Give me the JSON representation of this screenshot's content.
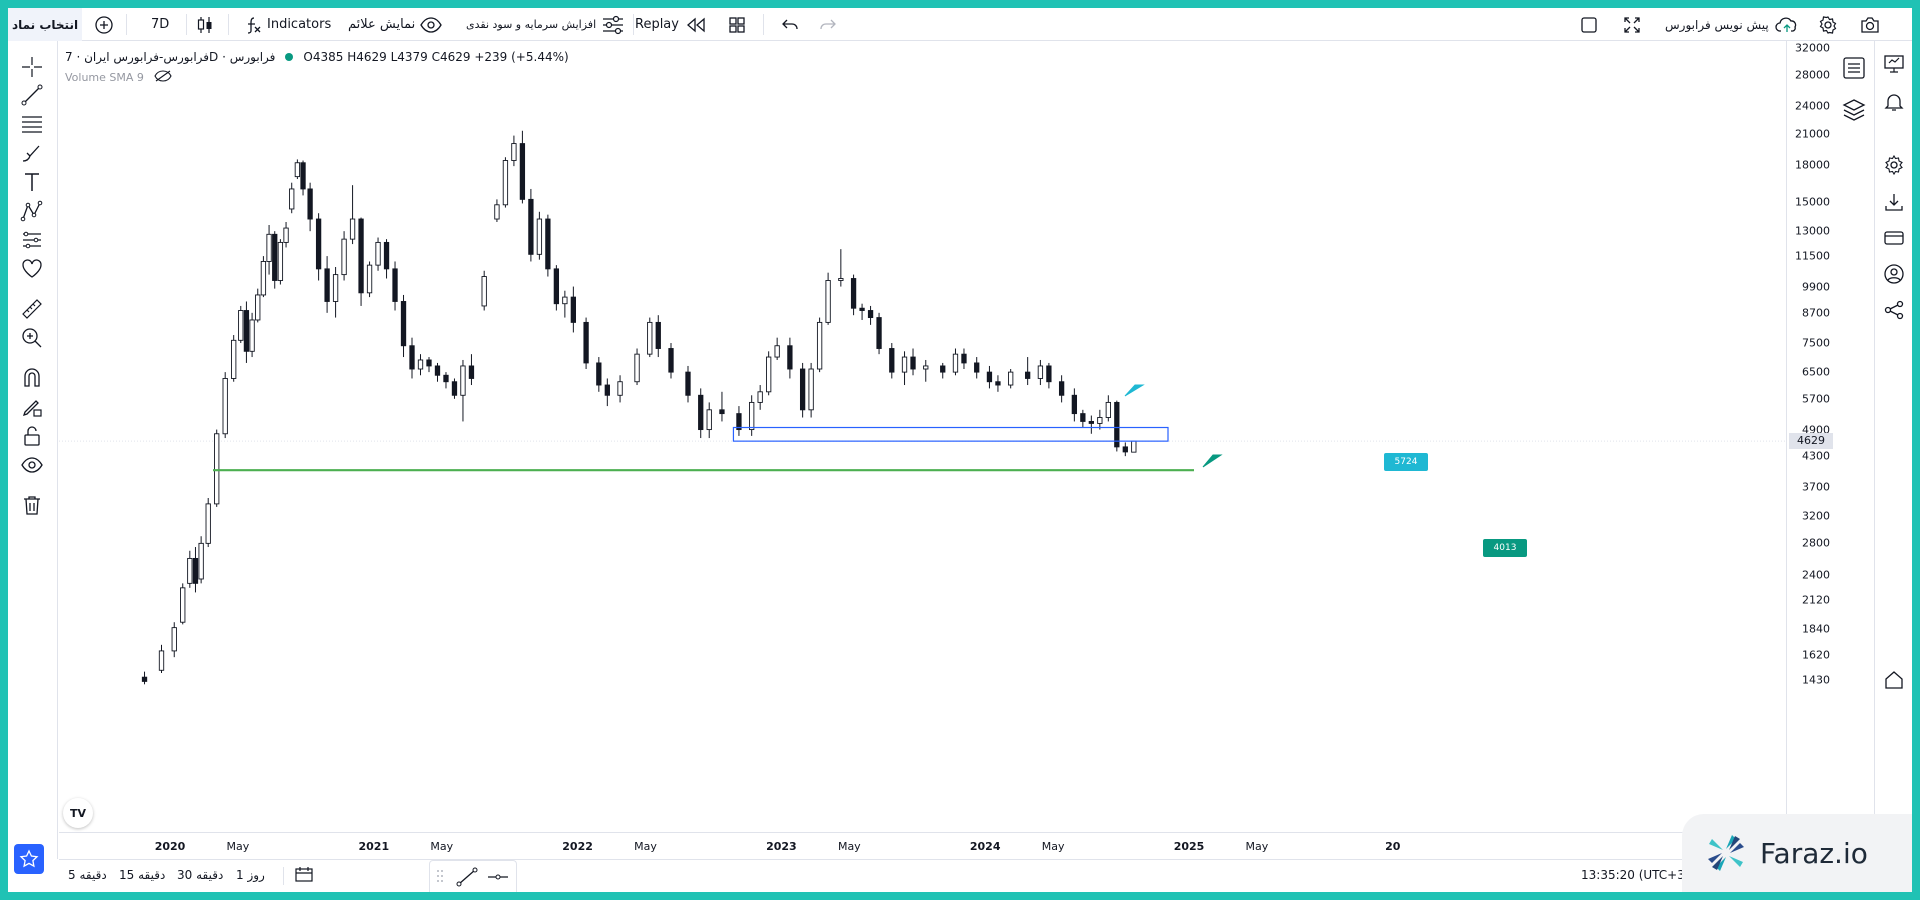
{
  "toolbar": {
    "symbol_label": "انتخاب نماد",
    "add_label": "+",
    "interval": "7D",
    "indicators_label": "Indicators",
    "show_signals_label": "نمایش علائم",
    "capital_increase_label": "افزایش سرمایه و سود نقدی",
    "replay_label": "Replay",
    "predict_label": "پیش نویس فرابورس"
  },
  "legend": {
    "symbol": "فرابورس-فرابورس ایران · 7D · فرابورس",
    "ohlc": "O4385 H4629 L4379 C4629 +239 (+5.44%)",
    "volume": "Volume SMA 9"
  },
  "price_axis": {
    "labels": [
      "32000",
      "28000",
      "24000",
      "21000",
      "18000",
      "15000",
      "13000",
      "11500",
      "9900",
      "8700",
      "7500",
      "6500",
      "5700",
      "4900",
      "4300",
      "3700",
      "3200",
      "2800",
      "2400",
      "2120",
      "1840",
      "1620",
      "1430"
    ],
    "current": "4629"
  },
  "time_axis": {
    "labels": [
      {
        "text": "2020",
        "year": true
      },
      {
        "text": "May",
        "year": false
      },
      {
        "text": "2021",
        "year": true
      },
      {
        "text": "May",
        "year": false
      },
      {
        "text": "2022",
        "year": true
      },
      {
        "text": "May",
        "year": false
      },
      {
        "text": "2023",
        "year": true
      },
      {
        "text": "May",
        "year": false
      },
      {
        "text": "2024",
        "year": true
      },
      {
        "text": "May",
        "year": false
      },
      {
        "text": "2025",
        "year": true
      },
      {
        "text": "May",
        "year": false
      },
      {
        "text": "20",
        "year": true
      }
    ]
  },
  "annotations": {
    "upper_label": "5724",
    "lower_label": "4013",
    "upper_color": "#1fb8d3",
    "lower_color": "#089981",
    "box_color": "#2962ff",
    "support_line_color": "#4caf50"
  },
  "bottombar": {
    "tf_5m": "5 دقیقه",
    "tf_15m": "15 دقیقه",
    "tf_30m": "30 دقیقه",
    "tf_1d": "1 روز",
    "clock": "13:35:20 (UTC+3:3"
  },
  "watermark": {
    "text": "Faraz.io"
  },
  "logo": {
    "text": "TV"
  },
  "chart_data": {
    "type": "candlestick",
    "scale": "log",
    "ylim": [
      1430,
      32000
    ],
    "candles": [
      [
        "2019-11",
        1450,
        1490,
        1400,
        1420
      ],
      [
        "2019-12",
        1500,
        1700,
        1480,
        1650
      ],
      [
        "2020-01",
        1650,
        1900,
        1600,
        1850
      ],
      [
        "2020-01",
        1900,
        2300,
        1880,
        2250
      ],
      [
        "2020-02",
        2300,
        2700,
        2250,
        2600
      ],
      [
        "2020-02",
        2600,
        2750,
        2200,
        2300
      ],
      [
        "2020-02",
        2350,
        2900,
        2300,
        2800
      ],
      [
        "2020-03",
        2800,
        3500,
        2750,
        3400
      ],
      [
        "2020-03",
        3400,
        4900,
        3350,
        4800
      ],
      [
        "2020-04",
        4800,
        6500,
        4700,
        6300
      ],
      [
        "2020-04",
        6300,
        7800,
        6200,
        7600
      ],
      [
        "2020-05",
        7600,
        9000,
        7500,
        8800
      ],
      [
        "2020-05",
        8800,
        9200,
        6800,
        7200
      ],
      [
        "2020-05",
        7200,
        8700,
        7000,
        8400
      ],
      [
        "2020-06",
        8400,
        9800,
        8300,
        9500
      ],
      [
        "2020-06",
        9500,
        11500,
        9400,
        11200
      ],
      [
        "2020-06",
        11200,
        13400,
        10500,
        12800
      ],
      [
        "2020-07",
        12800,
        13000,
        9800,
        10200
      ],
      [
        "2020-07",
        10200,
        12500,
        10000,
        12300
      ],
      [
        "2020-07",
        12300,
        13600,
        12000,
        13200
      ],
      [
        "2020-08",
        14500,
        16500,
        14200,
        16000
      ],
      [
        "2020-08",
        17000,
        18500,
        16800,
        18200
      ],
      [
        "2020-08",
        18200,
        18400,
        15500,
        16000
      ],
      [
        "2020-09",
        16000,
        16500,
        13000,
        13800
      ],
      [
        "2020-09",
        13800,
        14200,
        10200,
        10800
      ],
      [
        "2020-10",
        10800,
        11500,
        8700,
        9200
      ],
      [
        "2020-10",
        9200,
        10900,
        8500,
        10500
      ],
      [
        "2020-11",
        10500,
        13000,
        10200,
        12500
      ],
      [
        "2020-11",
        12500,
        16300,
        12200,
        13800
      ],
      [
        "2020-12",
        13800,
        13900,
        9000,
        9600
      ],
      [
        "2020-12",
        9600,
        11200,
        9400,
        11000
      ],
      [
        "2021-01",
        11000,
        12600,
        10700,
        12300
      ],
      [
        "2021-01",
        12300,
        12500,
        10300,
        10800
      ],
      [
        "2021-02",
        10800,
        11200,
        8800,
        9200
      ],
      [
        "2021-02",
        9200,
        9500,
        7000,
        7400
      ],
      [
        "2021-03",
        7400,
        7700,
        6300,
        6600
      ],
      [
        "2021-03",
        6600,
        7100,
        6400,
        6900
      ],
      [
        "2021-04",
        6900,
        7000,
        6500,
        6700
      ],
      [
        "2021-04",
        6700,
        6800,
        6200,
        6400
      ],
      [
        "2021-05",
        6400,
        6500,
        6000,
        6200
      ],
      [
        "2021-05",
        6200,
        6300,
        5700,
        5800
      ],
      [
        "2021-06",
        5800,
        6900,
        5100,
        6700
      ],
      [
        "2021-06",
        6700,
        7100,
        6100,
        6300
      ],
      [
        "2021-07",
        9000,
        10700,
        8800,
        10400
      ],
      [
        "2021-08",
        13800,
        15200,
        13600,
        14800
      ],
      [
        "2021-08",
        14800,
        18700,
        14600,
        18400
      ],
      [
        "2021-09",
        18400,
        20800,
        17900,
        20000
      ],
      [
        "2021-09",
        20000,
        21300,
        14900,
        15200
      ],
      [
        "2021-10",
        15200,
        16000,
        11200,
        11600
      ],
      [
        "2021-10",
        11600,
        14300,
        11300,
        13800
      ],
      [
        "2021-11",
        13800,
        14100,
        10400,
        10800
      ],
      [
        "2021-11",
        10800,
        11000,
        8800,
        9100
      ],
      [
        "2021-12",
        9100,
        9700,
        8500,
        9400
      ],
      [
        "2021-12",
        9400,
        9900,
        7900,
        8300
      ],
      [
        "2022-01",
        8300,
        8500,
        6600,
        6800
      ],
      [
        "2022-02",
        6800,
        7000,
        5900,
        6100
      ],
      [
        "2022-02",
        6100,
        6300,
        5500,
        5800
      ],
      [
        "2022-03",
        5800,
        6400,
        5600,
        6200
      ],
      [
        "2022-04",
        6200,
        7300,
        6100,
        7100
      ],
      [
        "2022-05",
        7100,
        8500,
        7000,
        8300
      ],
      [
        "2022-05",
        8300,
        8600,
        7000,
        7300
      ],
      [
        "2022-06",
        7300,
        7500,
        6300,
        6500
      ],
      [
        "2022-07",
        6500,
        6700,
        5600,
        5800
      ],
      [
        "2022-08",
        5800,
        6000,
        4700,
        4900
      ],
      [
        "2022-08",
        4900,
        5600,
        4700,
        5400
      ],
      [
        "2022-09",
        5400,
        5900,
        5100,
        5300
      ],
      [
        "2022-10",
        5300,
        5500,
        4750,
        4900
      ],
      [
        "2022-11",
        4900,
        5800,
        4750,
        5600
      ],
      [
        "2022-11",
        5600,
        6100,
        5400,
        5900
      ],
      [
        "2022-12",
        5900,
        7200,
        5800,
        7000
      ],
      [
        "2022-12",
        7000,
        7700,
        6900,
        7400
      ],
      [
        "2023-01",
        7400,
        7700,
        6300,
        6600
      ],
      [
        "2023-02",
        6600,
        6800,
        5200,
        5400
      ],
      [
        "2023-02",
        5400,
        6800,
        5200,
        6600
      ],
      [
        "2023-03",
        6600,
        8500,
        6500,
        8300
      ],
      [
        "2023-03",
        8300,
        10600,
        8200,
        10200
      ],
      [
        "2023-04",
        10200,
        11900,
        9900,
        10300
      ],
      [
        "2023-05",
        10300,
        10500,
        8600,
        8900
      ],
      [
        "2023-05",
        8900,
        9100,
        8400,
        8800
      ],
      [
        "2023-06",
        8800,
        9000,
        8200,
        8500
      ],
      [
        "2023-06",
        8500,
        8700,
        7100,
        7300
      ],
      [
        "2023-07",
        7300,
        7500,
        6300,
        6500
      ],
      [
        "2023-08",
        6500,
        7200,
        6100,
        7000
      ],
      [
        "2023-08",
        7000,
        7300,
        6400,
        6600
      ],
      [
        "2023-09",
        6600,
        6900,
        6200,
        6700
      ],
      [
        "2023-10",
        6700,
        6800,
        6300,
        6500
      ],
      [
        "2023-11",
        6500,
        7300,
        6400,
        7100
      ],
      [
        "2023-11",
        7100,
        7300,
        6600,
        6800
      ],
      [
        "2023-12",
        6800,
        7000,
        6300,
        6500
      ],
      [
        "2024-01",
        6500,
        6700,
        6000,
        6200
      ],
      [
        "2024-01",
        6200,
        6400,
        5900,
        6100
      ],
      [
        "2024-02",
        6100,
        6600,
        6000,
        6500
      ],
      [
        "2024-03",
        6500,
        7000,
        6100,
        6300
      ],
      [
        "2024-04",
        6300,
        6900,
        6100,
        6700
      ],
      [
        "2024-04",
        6700,
        6800,
        6000,
        6200
      ],
      [
        "2024-05",
        6200,
        6400,
        5600,
        5800
      ],
      [
        "2024-06",
        5800,
        6000,
        5100,
        5300
      ],
      [
        "2024-06",
        5300,
        5400,
        4950,
        5100
      ],
      [
        "2024-07",
        5100,
        5250,
        4800,
        5050
      ],
      [
        "2024-07",
        5050,
        5400,
        4900,
        5200
      ],
      [
        "2024-08",
        5200,
        5800,
        5100,
        5600
      ],
      [
        "2024-08",
        5600,
        5650,
        4400,
        4500
      ],
      [
        "2024-09",
        4500,
        4600,
        4300,
        4390
      ],
      [
        "2024-09",
        4385,
        4629,
        4379,
        4629
      ]
    ],
    "support_level": 4013,
    "zone": [
      4629,
      4950
    ],
    "callouts": [
      5724,
      4013
    ]
  }
}
